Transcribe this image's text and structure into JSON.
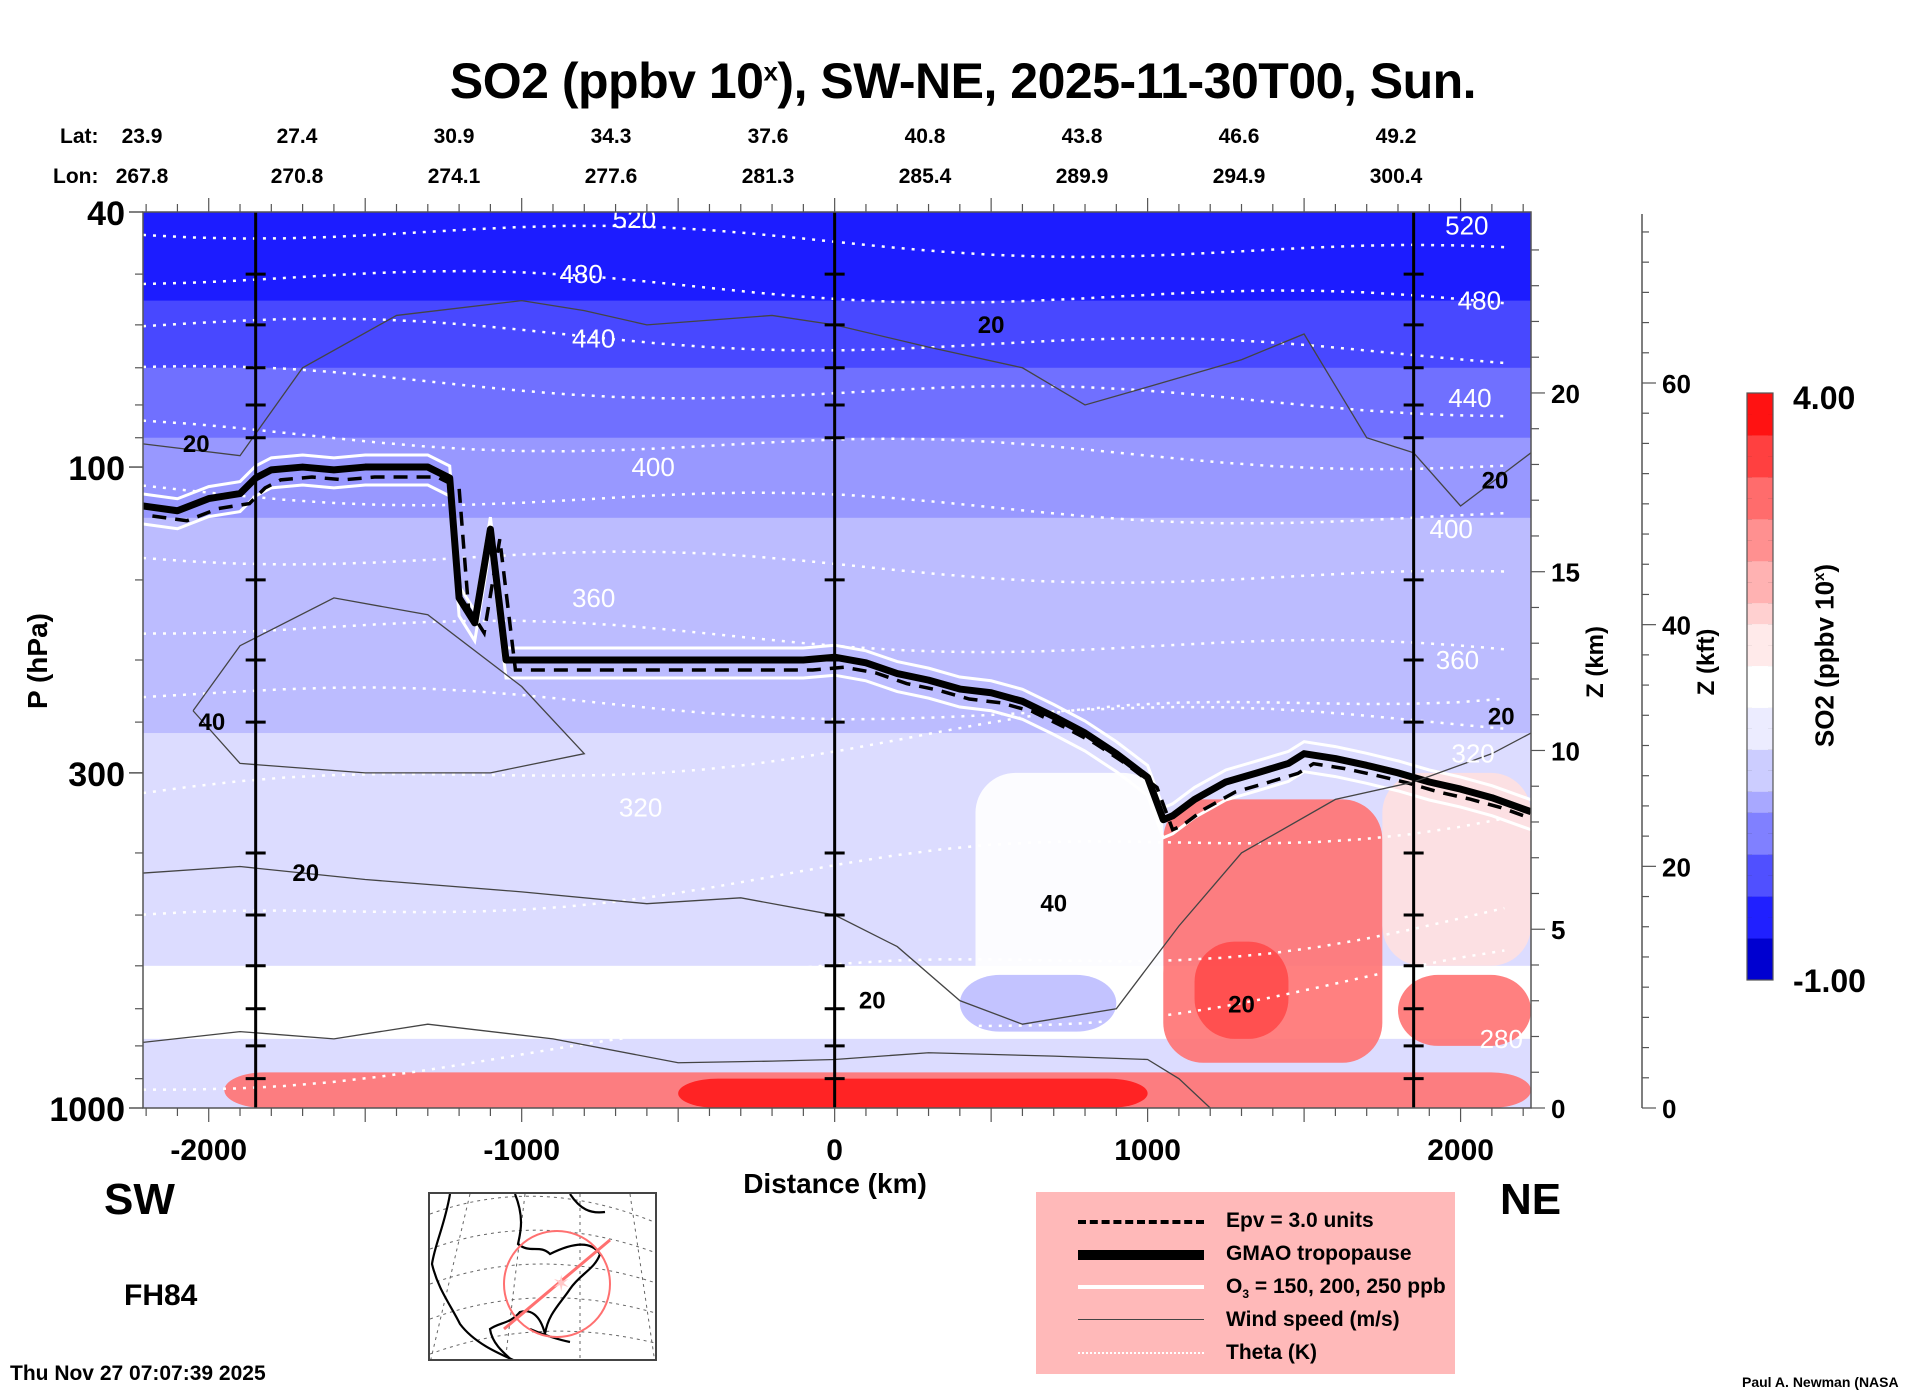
{
  "title": {
    "prefix": "SO2 (ppbv 10",
    "superscript": "x",
    "suffix": "), SW-NE, 2025-11-30T00, Sun."
  },
  "latlon": {
    "lat_label": "Lat:",
    "lon_label": "Lon:",
    "lat": [
      "23.9",
      "27.4",
      "30.9",
      "34.3",
      "37.6",
      "40.8",
      "43.8",
      "46.6",
      "49.2"
    ],
    "lon": [
      "267.8",
      "270.8",
      "274.1",
      "277.6",
      "281.3",
      "285.4",
      "289.9",
      "294.9",
      "300.4"
    ]
  },
  "direction": {
    "left": "SW",
    "right": "NE"
  },
  "forecast_hour": "FH84",
  "timestamp": "Thu Nov 27 07:07:39 2025",
  "credit": "Paul A. Newman (NASA",
  "legend": {
    "epv": "Epv = 3.0 units",
    "tropopause": "GMAO tropopause",
    "o3_prefix": "O",
    "o3_sub": "3",
    "o3_suffix": " = 150, 200, 250 ppb",
    "wind": "Wind speed (m/s)",
    "theta": "Theta (K)"
  },
  "colors": {
    "high": "#ff1010",
    "mid": "#ffffff",
    "low": "#0000e0",
    "legend_bg": "#ffb9b9",
    "map_track": "#ff7070"
  },
  "chart_data": {
    "type": "heatmap",
    "title": "SO2 (ppbv 10^x), SW-NE, 2025-11-30T00, Sun.",
    "xlabel": "Distance (km)",
    "ylabel": "P (hPa)",
    "ylabel_right_km": "Z (km)",
    "ylabel_right_kft": "Z (kft)",
    "colorbar_label": "SO2 (ppbv 10^x)",
    "xlim": [
      -2210,
      2225
    ],
    "ylim": [
      1000,
      40
    ],
    "y_scale": "log",
    "x_ticks": [
      -2000,
      -1000,
      0,
      1000,
      2000
    ],
    "x_tick_labels": [
      "-2000",
      "-1000",
      "0",
      "1000",
      "2000"
    ],
    "y_ticks": [
      40,
      100,
      300,
      1000
    ],
    "y_tick_labels": [
      "40",
      "100",
      "300",
      "1000"
    ],
    "z_km_ticks": [
      0,
      5,
      10,
      15,
      20
    ],
    "z_km_tick_labels": [
      "0",
      "5",
      "10",
      "15",
      "20"
    ],
    "z_kft_ticks": [
      0,
      20,
      40,
      60
    ],
    "z_kft_tick_labels": [
      "0",
      "20",
      "40",
      "60"
    ],
    "colorbar_range": [
      -1.0,
      4.0
    ],
    "colorbar_tick_labels": [
      "4.00",
      "-1.00"
    ],
    "vertical_guides_km": [
      -1850,
      0,
      1850
    ],
    "theta_contour_labels": [
      {
        "label": "520",
        "x": -640,
        "p": 41
      },
      {
        "label": "520",
        "x": 2020,
        "p": 42
      },
      {
        "label": "480",
        "x": -810,
        "p": 50
      },
      {
        "label": "480",
        "x": 2060,
        "p": 55
      },
      {
        "label": "440",
        "x": -770,
        "p": 63
      },
      {
        "label": "440",
        "x": 2030,
        "p": 78
      },
      {
        "label": "400",
        "x": -580,
        "p": 100
      },
      {
        "label": "400",
        "x": 1970,
        "p": 125
      },
      {
        "label": "360",
        "x": -770,
        "p": 160
      },
      {
        "label": "360",
        "x": 1990,
        "p": 200
      },
      {
        "label": "320",
        "x": -620,
        "p": 340
      },
      {
        "label": "320",
        "x": 2040,
        "p": 280
      },
      {
        "label": "280",
        "x": 2130,
        "p": 780
      }
    ],
    "wind_contour_labels": [
      {
        "label": "20",
        "x": -2040,
        "p": 92
      },
      {
        "label": "20",
        "x": 500,
        "p": 60
      },
      {
        "label": "20",
        "x": 2110,
        "p": 105
      },
      {
        "label": "20",
        "x": 2130,
        "p": 245
      },
      {
        "label": "40",
        "x": -1990,
        "p": 250
      },
      {
        "label": "40",
        "x": 700,
        "p": 480
      },
      {
        "label": "20",
        "x": -1690,
        "p": 430
      },
      {
        "label": "20",
        "x": 120,
        "p": 680
      },
      {
        "label": "20",
        "x": 1300,
        "p": 690
      }
    ],
    "tropopause_p": {
      "x": [
        -2210,
        -2100,
        -2000,
        -1900,
        -1850,
        -1800,
        -1700,
        -1600,
        -1500,
        -1400,
        -1300,
        -1230,
        -1200,
        -1150,
        -1100,
        -1050,
        -1000,
        -900,
        -700,
        -500,
        -300,
        -100,
        0,
        100,
        200,
        300,
        400,
        500,
        600,
        700,
        800,
        900,
        1000,
        1050,
        1080,
        1150,
        1250,
        1350,
        1450,
        1500,
        1600,
        1700,
        1800,
        1900,
        2000,
        2100,
        2225
      ],
      "values": [
        115,
        117,
        112,
        110,
        104,
        101,
        100,
        101,
        100,
        100,
        100,
        104,
        160,
        175,
        125,
        200,
        200,
        200,
        200,
        200,
        200,
        200,
        198,
        202,
        210,
        215,
        222,
        225,
        232,
        245,
        260,
        280,
        305,
        355,
        350,
        330,
        310,
        300,
        290,
        280,
        285,
        292,
        300,
        310,
        318,
        328,
        345
      ]
    },
    "colormap": [
      "#0000d8",
      "#1c1cff",
      "#4848ff",
      "#7070ff",
      "#9898ff",
      "#bcbcff",
      "#dcdcff",
      "#ffffff",
      "#ffe0e0",
      "#ffc0c0",
      "#ff9a9a",
      "#ff7272",
      "#ff4a4a",
      "#ff1a1a"
    ]
  }
}
